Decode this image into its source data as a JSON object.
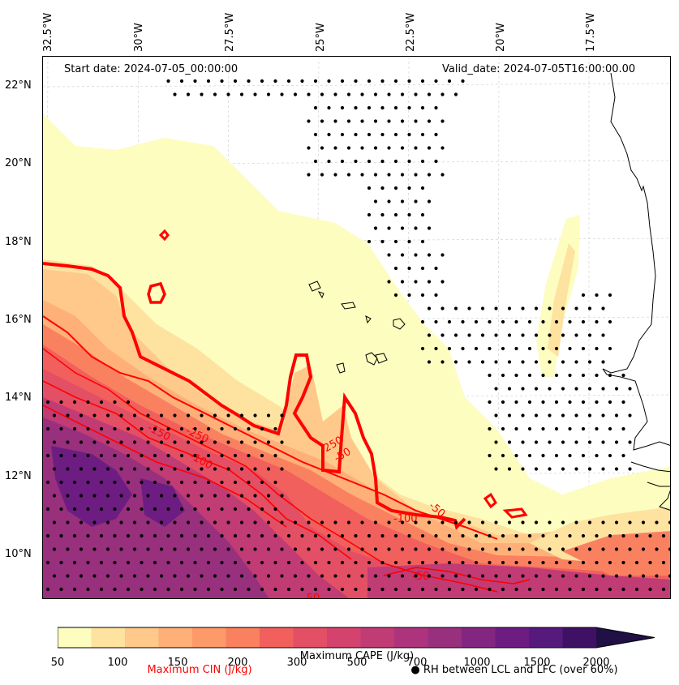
{
  "header": {
    "start_date": "Start date: 2024-07-05_00:00:00",
    "valid_date": "Valid_date: 2024-07-05T16:00:00.00"
  },
  "axes": {
    "lon_labels": [
      "32.5°W",
      "30°W",
      "27.5°W",
      "25°W",
      "22.5°W",
      "20°W",
      "17.5°W"
    ],
    "lat_labels": [
      "22°N",
      "20°N",
      "18°N",
      "16°N",
      "14°N",
      "12°N",
      "10°N"
    ]
  },
  "colorbar": {
    "label": "Maximum CAPE (J/kg)",
    "ticks": [
      "50",
      "100",
      "150",
      "200",
      "300",
      "500",
      "700",
      "1000",
      "1500",
      "2000"
    ],
    "colors": [
      "#fcfdbf",
      "#fde2a0",
      "#fec98a",
      "#feb078",
      "#fc9a6a",
      "#f98160",
      "#f1605d",
      "#e34f64",
      "#d3436e",
      "#c13b75",
      "#ad347c",
      "#98307e",
      "#832681",
      "#6d1d81",
      "#561a7d",
      "#3e1165",
      "#201046"
    ]
  },
  "cin_contours": {
    "label": "Maximum CIN (J/kg)",
    "color": "#ff0000",
    "levels_shown": [
      "-250",
      "-150",
      "-100",
      "-50",
      "-250",
      "-50",
      "-100",
      "-50",
      "-50"
    ]
  },
  "rh_marker": {
    "label": "RH between LCL and LFC (over 60%)"
  }
}
